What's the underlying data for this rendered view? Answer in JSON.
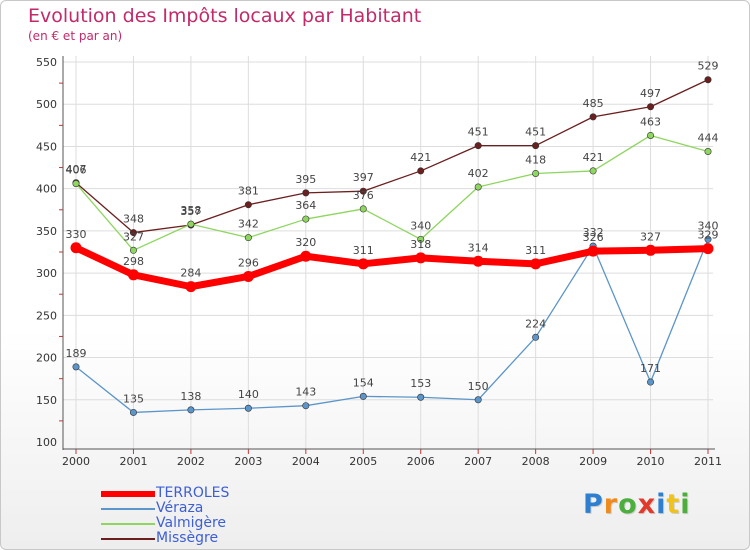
{
  "title": "Evolution des Impôts locaux par Habitant",
  "subtitle": "(en € et par an)",
  "logo": {
    "text": "Proxiti",
    "colors": [
      "#2f7fd1",
      "#f08a1c",
      "#4cae3c",
      "#e23a2a",
      "#2f7fd1",
      "#f0c21c",
      "#4cae3c"
    ]
  },
  "colors": {
    "TERROLES": "#ff0000",
    "Véraza": "#5b95c9",
    "Valmigère": "#8ed65f",
    "Missègre": "#6b1f1f",
    "grid": "#dddddd",
    "axis": "#555555",
    "tick_red": "#cc3333"
  },
  "chart_data": {
    "type": "line",
    "title": "Evolution des Impôts locaux par Habitant",
    "subtitle": "(en € et par an)",
    "xlabel": "",
    "ylabel": "",
    "categories": [
      "2000",
      "2001",
      "2002",
      "2003",
      "2004",
      "2005",
      "2006",
      "2007",
      "2008",
      "2009",
      "2010",
      "2011"
    ],
    "ylim": [
      100,
      550
    ],
    "yticks": [
      100,
      150,
      200,
      250,
      300,
      350,
      400,
      450,
      500,
      550
    ],
    "grid": true,
    "legend_position": "bottom-left",
    "series": [
      {
        "name": "TERROLES",
        "values": [
          330,
          298,
          284,
          296,
          320,
          311,
          318,
          314,
          311,
          326,
          327,
          329
        ]
      },
      {
        "name": "Véraza",
        "values": [
          189,
          135,
          138,
          140,
          143,
          154,
          153,
          150,
          224,
          332,
          171,
          340
        ]
      },
      {
        "name": "Valmigère",
        "values": [
          406,
          327,
          358,
          342,
          364,
          376,
          340,
          402,
          418,
          421,
          463,
          444
        ]
      },
      {
        "name": "Missègre",
        "values": [
          407,
          348,
          357,
          381,
          395,
          397,
          421,
          451,
          451,
          485,
          497,
          529
        ]
      }
    ]
  },
  "legend": [
    {
      "label": "TERROLES",
      "series": "TERROLES"
    },
    {
      "label": "Véraza",
      "series": "Véraza"
    },
    {
      "label": "Valmigère",
      "series": "Valmigère"
    },
    {
      "label": "Missègre",
      "series": "Missègre"
    }
  ]
}
